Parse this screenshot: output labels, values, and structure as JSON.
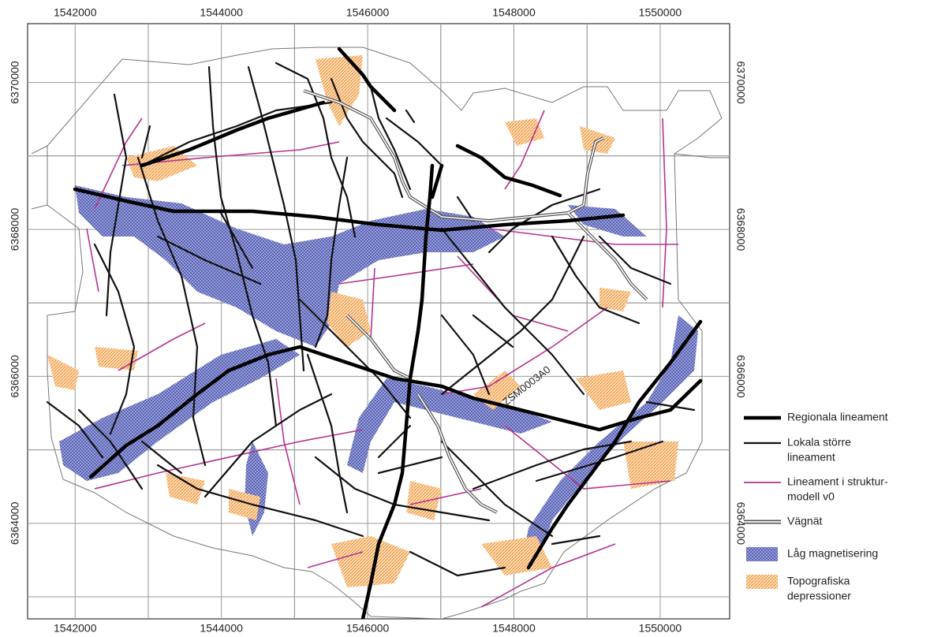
{
  "map": {
    "xlim": [
      1541350,
      1550950
    ],
    "ylim": [
      6362700,
      6370800
    ],
    "xticks": [
      1542000,
      1544000,
      1546000,
      1548000,
      1550000
    ],
    "yticks": [
      6364000,
      6366000,
      6368000,
      6370000
    ],
    "annotation": "ZSM0003A0",
    "legend": [
      {
        "label": [
          "Regionala lineament"
        ]
      },
      {
        "label": [
          "Lokala större",
          "lineament"
        ]
      },
      {
        "label": [
          "Lineament i struktur-",
          "modell v0"
        ]
      },
      {
        "label": [
          "Vägnät"
        ]
      },
      {
        "label": [
          "Låg magnetisering"
        ]
      },
      {
        "label": [
          "Topografiska",
          "depressioner"
        ]
      }
    ]
  }
}
